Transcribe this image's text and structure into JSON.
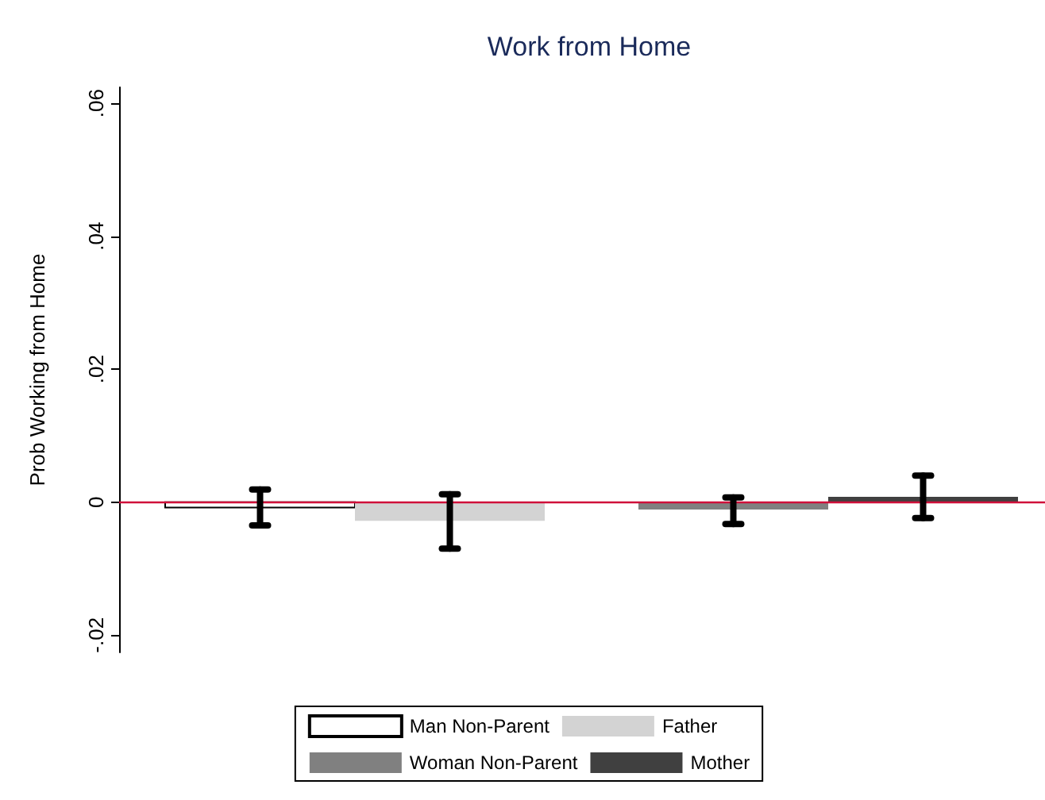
{
  "chart_data": {
    "type": "bar",
    "title": "Work from Home",
    "ylabel": "Prob Working from Home",
    "categories": [
      null,
      null
    ],
    "series": [
      {
        "name": "Man Non-Parent",
        "color": "#ffffff",
        "values": [
          -0.0008,
          null
        ],
        "errors": [
          [
            -0.0035,
            0.0019
          ],
          null
        ]
      },
      {
        "name": "Father",
        "color": "#d3d3d3",
        "values": [
          -0.0028,
          null
        ],
        "errors": [
          [
            -0.007,
            0.0012
          ],
          null
        ]
      },
      {
        "name": "Woman Non-Parent",
        "color": "#808080",
        "values": [
          null,
          -0.0011
        ],
        "errors": [
          null,
          [
            -0.0033,
            0.0007
          ]
        ]
      },
      {
        "name": "Mother",
        "color": "#404040",
        "values": [
          null,
          0.0008
        ],
        "errors": [
          null,
          [
            -0.0024,
            0.004
          ]
        ]
      }
    ],
    "ylim": [
      -0.0226,
      0.0624
    ],
    "yticks": [
      {
        "value": -0.02,
        "label": "-.02"
      },
      0,
      {
        "value": 0.02,
        "label": ".02"
      },
      {
        "value": 0.04,
        "label": ".04"
      },
      {
        "value": 0.06,
        "label": ".06"
      }
    ],
    "ref_lines": [
      {
        "axis": "y",
        "value": 0,
        "label": null,
        "color": "#d0103a"
      }
    ],
    "grid": false,
    "legend": "bottom"
  }
}
